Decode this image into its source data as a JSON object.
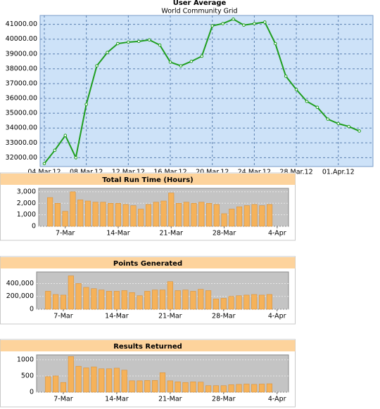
{
  "chart_data": [
    {
      "type": "line",
      "title": "User Average",
      "subtitle": "World Community Grid",
      "categories": [
        "04.Mar.12",
        null,
        null,
        null,
        "08.Mar.12",
        null,
        null,
        null,
        "12.Mar.12",
        null,
        null,
        null,
        "16.Mar.12",
        null,
        null,
        null,
        "20.Mar.12",
        null,
        null,
        null,
        "24.Mar.12",
        null,
        null,
        null,
        "28.Mar.12",
        null,
        null,
        null,
        "01.Apr.12",
        null,
        null
      ],
      "series": [
        {
          "name": "User Average",
          "color": "#1f9e1f",
          "values": [
            31600,
            32500,
            33500,
            32000,
            35600,
            38200,
            39100,
            39700,
            39800,
            39850,
            39950,
            39600,
            38450,
            38200,
            38500,
            38850,
            40900,
            41050,
            41350,
            40950,
            41050,
            41150,
            39700,
            37500,
            36600,
            35800,
            35400,
            34600,
            34300,
            34100,
            33800
          ]
        }
      ],
      "ylim": [
        31400,
        41600
      ],
      "yticks": [
        {
          "value": 32000,
          "label": "32000.00"
        },
        {
          "value": 33000,
          "label": "33000.00"
        },
        {
          "value": 34000,
          "label": "34000.00"
        },
        {
          "value": 35000,
          "label": "35000.00"
        },
        {
          "value": 36000,
          "label": "36000.00"
        },
        {
          "value": 37000,
          "label": "37000.00"
        },
        {
          "value": 38000,
          "label": "38000.00"
        },
        {
          "value": 39000,
          "label": "39000.00"
        },
        {
          "value": 40000,
          "label": "40000.00"
        },
        {
          "value": 41000,
          "label": "41000.00"
        }
      ],
      "grid": true,
      "background": "#cde2f8"
    },
    {
      "type": "bar",
      "title": "Total Run Time (Hours)",
      "categories": [
        null,
        null,
        null,
        "7-Mar",
        null,
        null,
        null,
        null,
        null,
        null,
        "14-Mar",
        null,
        null,
        null,
        null,
        null,
        null,
        "21-Mar",
        null,
        null,
        null,
        null,
        null,
        null,
        "28-Mar",
        null,
        null,
        null,
        null,
        null,
        null,
        "4-Apr",
        null
      ],
      "values": [
        null,
        2500,
        2000,
        1300,
        3000,
        2300,
        2200,
        2100,
        2100,
        2000,
        2000,
        1900,
        1800,
        1500,
        1900,
        2100,
        2200,
        2900,
        2000,
        2100,
        2000,
        2100,
        2000,
        1900,
        1100,
        1500,
        1700,
        1800,
        1900,
        1800,
        1900,
        null,
        null
      ],
      "color": "#f5b25a",
      "ylim": [
        0,
        3300
      ],
      "yticks": [
        0,
        {
          "value": 1000,
          "label": "1,000"
        },
        {
          "value": 2000,
          "label": "2,000"
        },
        {
          "value": 3000,
          "label": "3,000"
        }
      ],
      "grid": true,
      "background": "#c4c4c4"
    },
    {
      "type": "bar",
      "title": "Points Generated",
      "categories": [
        null,
        null,
        null,
        "7-Mar",
        null,
        null,
        null,
        null,
        null,
        null,
        "14-Mar",
        null,
        null,
        null,
        null,
        null,
        null,
        "21-Mar",
        null,
        null,
        null,
        null,
        null,
        null,
        "28-Mar",
        null,
        null,
        null,
        null,
        null,
        null,
        "4-Apr",
        null
      ],
      "values": [
        null,
        280000,
        230000,
        220000,
        520000,
        400000,
        340000,
        320000,
        300000,
        280000,
        280000,
        290000,
        260000,
        210000,
        280000,
        300000,
        300000,
        430000,
        290000,
        300000,
        280000,
        310000,
        290000,
        160000,
        170000,
        200000,
        210000,
        220000,
        230000,
        220000,
        230000,
        null,
        null
      ],
      "color": "#f5b25a",
      "ylim": [
        0,
        580000
      ],
      "yticks": [
        0,
        {
          "value": 200000,
          "label": "200,000"
        },
        {
          "value": 400000,
          "label": "400,000"
        }
      ],
      "grid": true,
      "background": "#c4c4c4"
    },
    {
      "type": "bar",
      "title": "Results Returned",
      "categories": [
        null,
        null,
        null,
        "7-Mar",
        null,
        null,
        null,
        null,
        null,
        null,
        "14-Mar",
        null,
        null,
        null,
        null,
        null,
        null,
        "21-Mar",
        null,
        null,
        null,
        null,
        null,
        null,
        "28-Mar",
        null,
        null,
        null,
        null,
        null,
        null,
        "4-Apr",
        null
      ],
      "values": [
        null,
        480,
        500,
        300,
        1100,
        800,
        750,
        780,
        720,
        720,
        740,
        680,
        350,
        350,
        360,
        360,
        600,
        350,
        320,
        300,
        320,
        310,
        200,
        200,
        200,
        230,
        240,
        250,
        240,
        250,
        260,
        null,
        null
      ],
      "color": "#f5b25a",
      "ylim": [
        0,
        1150
      ],
      "yticks": [
        0,
        500,
        1000
      ],
      "grid": true,
      "background": "#c4c4c4"
    }
  ]
}
